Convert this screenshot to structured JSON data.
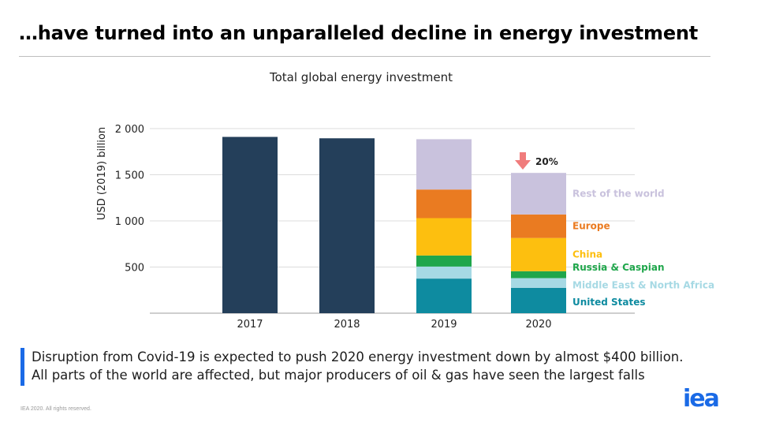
{
  "slide": {
    "title": "…have turned into an unparalleled decline in energy investment",
    "caption_line1": "Disruption from Covid-19 is expected to push 2020 energy investment down by almost $400 billion.",
    "caption_line2": "All parts of the world are affected, but major producers of oil & gas have seen the largest falls",
    "footer": "IEA 2020. All rights reserved.",
    "logo": "iea"
  },
  "colors": {
    "accent": "#1a6ae6",
    "total": "#243f5a",
    "arrow": "#f07c7c"
  },
  "chart_data": {
    "type": "bar",
    "stacked": true,
    "title": "Total global energy investment",
    "ylabel": "USD (2019) billion",
    "xlabel": "",
    "ylim": [
      0,
      2000
    ],
    "yticks": [
      500,
      1000,
      1500,
      2000
    ],
    "ytick_labels": [
      "500",
      "1 000",
      "1 500",
      "2 000"
    ],
    "grid": true,
    "categories": [
      "2017",
      "2018",
      "2019",
      "2020"
    ],
    "series": [
      {
        "name": "",
        "color": "#243f5a",
        "values": [
          1910,
          1895,
          0,
          0
        ]
      },
      {
        "name": "United States",
        "color": "#0e8ba0",
        "values": [
          0,
          0,
          375,
          275
        ]
      },
      {
        "name": "Middle East & North Africa",
        "color": "#a6d9e4",
        "values": [
          0,
          0,
          130,
          105
        ]
      },
      {
        "name": "Russia & Caspian",
        "color": "#1fa64b",
        "values": [
          0,
          0,
          120,
          75
        ]
      },
      {
        "name": "China",
        "color": "#fdbf0f",
        "values": [
          0,
          0,
          405,
          360
        ]
      },
      {
        "name": "Europe",
        "color": "#ea7b21",
        "values": [
          0,
          0,
          310,
          255
        ]
      },
      {
        "name": "Rest of the world",
        "color": "#c9c2dd",
        "values": [
          0,
          0,
          545,
          450
        ]
      }
    ],
    "legend_placement": "right of 2020 bar",
    "annotation": {
      "text": "20%",
      "category": "2020"
    }
  }
}
